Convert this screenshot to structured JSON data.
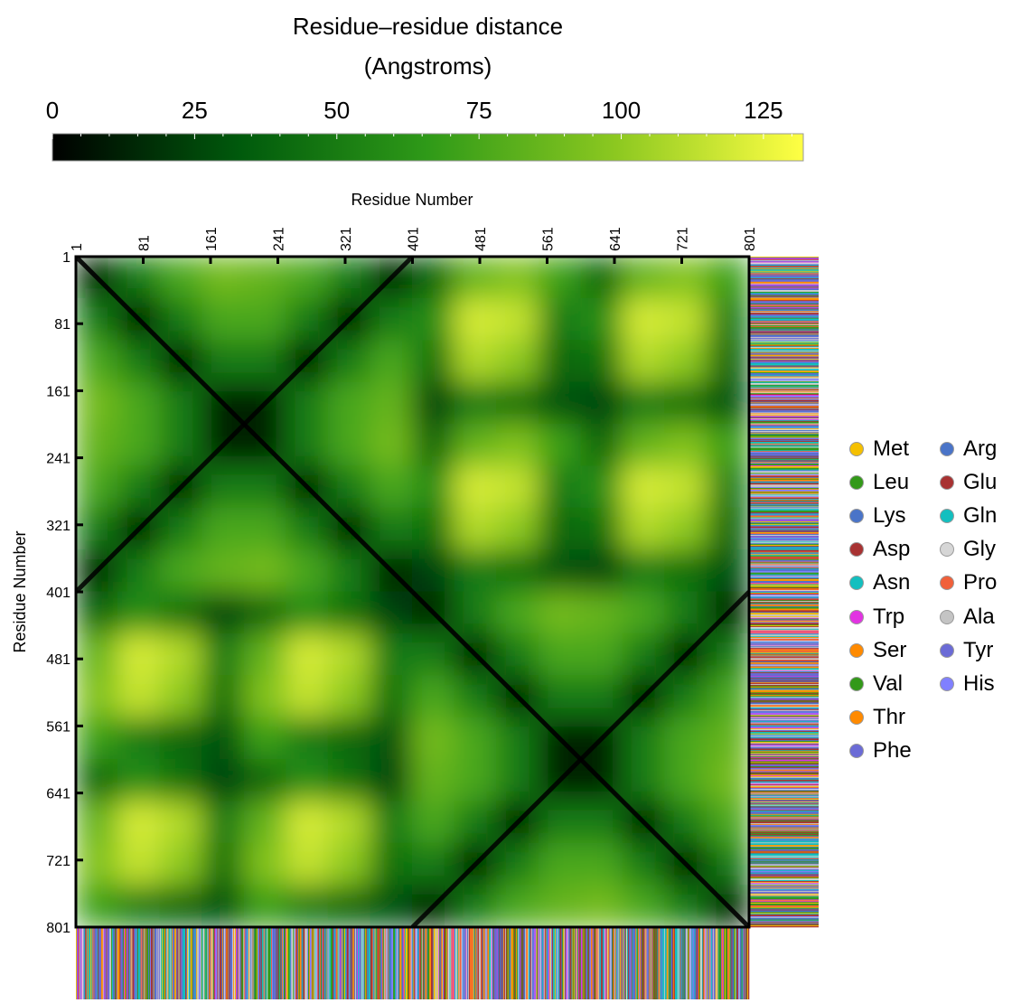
{
  "chart_data": {
    "type": "heatmap",
    "colorbar": {
      "title_line1": "Residue–residue distance",
      "title_line2": "(Angstroms)",
      "ticks": [
        0,
        25,
        50,
        75,
        100,
        125
      ],
      "range": [
        0,
        132
      ],
      "colors": [
        "#000000",
        "#005a0c",
        "#2f9a18",
        "#8cc820",
        "#ffff44"
      ]
    },
    "xlabel": "Residue Number",
    "ylabel": "Residue Number",
    "xticks": [
      1,
      81,
      161,
      241,
      321,
      401,
      481,
      561,
      641,
      721,
      801
    ],
    "yticks": [
      1,
      81,
      161,
      241,
      321,
      401,
      481,
      561,
      641,
      721,
      801
    ],
    "range": [
      1,
      801
    ],
    "cell_size_residues": 50,
    "z": [
      [
        12,
        50,
        75,
        90,
        85,
        75,
        50,
        12,
        40,
        85,
        95,
        70,
        40,
        85,
        95,
        70
      ],
      [
        50,
        12,
        50,
        75,
        75,
        50,
        12,
        50,
        60,
        120,
        115,
        50,
        60,
        120,
        115,
        50
      ],
      [
        75,
        50,
        12,
        50,
        50,
        12,
        50,
        75,
        45,
        110,
        100,
        40,
        45,
        110,
        100,
        40
      ],
      [
        90,
        75,
        50,
        12,
        12,
        50,
        75,
        85,
        25,
        50,
        45,
        30,
        25,
        50,
        45,
        30
      ],
      [
        85,
        75,
        50,
        12,
        12,
        50,
        75,
        90,
        40,
        85,
        95,
        70,
        40,
        85,
        95,
        70
      ],
      [
        75,
        50,
        12,
        50,
        50,
        12,
        50,
        75,
        60,
        120,
        115,
        50,
        60,
        120,
        115,
        50
      ],
      [
        50,
        12,
        50,
        75,
        75,
        50,
        12,
        50,
        45,
        110,
        100,
        40,
        45,
        110,
        100,
        40
      ],
      [
        12,
        50,
        75,
        85,
        90,
        75,
        50,
        12,
        25,
        50,
        45,
        30,
        25,
        50,
        45,
        30
      ],
      [
        40,
        60,
        45,
        25,
        40,
        60,
        45,
        25,
        12,
        50,
        75,
        90,
        85,
        75,
        50,
        12
      ],
      [
        85,
        120,
        110,
        50,
        85,
        120,
        110,
        50,
        50,
        12,
        50,
        75,
        75,
        50,
        12,
        50
      ],
      [
        95,
        115,
        100,
        45,
        95,
        115,
        100,
        45,
        75,
        50,
        12,
        50,
        50,
        12,
        50,
        75
      ],
      [
        70,
        50,
        40,
        30,
        70,
        50,
        40,
        30,
        90,
        75,
        50,
        12,
        12,
        50,
        75,
        85
      ],
      [
        40,
        60,
        45,
        25,
        40,
        60,
        45,
        25,
        85,
        75,
        50,
        12,
        12,
        50,
        75,
        90
      ],
      [
        85,
        120,
        110,
        50,
        85,
        120,
        110,
        50,
        75,
        50,
        12,
        50,
        50,
        12,
        50,
        75
      ],
      [
        95,
        115,
        100,
        45,
        95,
        115,
        100,
        45,
        50,
        12,
        50,
        75,
        75,
        50,
        12,
        50
      ],
      [
        70,
        50,
        40,
        30,
        70,
        50,
        40,
        30,
        12,
        50,
        75,
        85,
        90,
        75,
        50,
        12
      ]
    ],
    "legend": [
      {
        "label": "Met",
        "color": "#f5c000"
      },
      {
        "label": "Leu",
        "color": "#339919"
      },
      {
        "label": "Lys",
        "color": "#4a74c8"
      },
      {
        "label": "Asp",
        "color": "#a83232"
      },
      {
        "label": "Asn",
        "color": "#13bfbf"
      },
      {
        "label": "Trp",
        "color": "#e233e2"
      },
      {
        "label": "Ser",
        "color": "#ff8a00"
      },
      {
        "label": "Val",
        "color": "#339919"
      },
      {
        "label": "Thr",
        "color": "#ff8a00"
      },
      {
        "label": "Phe",
        "color": "#6b6bd6"
      },
      {
        "label": "Arg",
        "color": "#4a74c8"
      },
      {
        "label": "Glu",
        "color": "#a83232"
      },
      {
        "label": "Gln",
        "color": "#13bfbf"
      },
      {
        "label": "Gly",
        "color": "#d6d6d6"
      },
      {
        "label": "Pro",
        "color": "#f0603a"
      },
      {
        "label": "Ala",
        "color": "#c4c4c4"
      },
      {
        "label": "Tyr",
        "color": "#6b6bd6"
      },
      {
        "label": "His",
        "color": "#8080ff"
      }
    ],
    "legend_placement": "right"
  }
}
